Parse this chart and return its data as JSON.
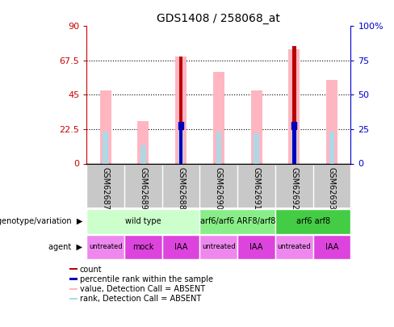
{
  "title": "GDS1408 / 258068_at",
  "samples": [
    "GSM62687",
    "GSM62689",
    "GSM62688",
    "GSM62690",
    "GSM62691",
    "GSM62692",
    "GSM62693"
  ],
  "ylim": [
    0,
    90
  ],
  "y2lim": [
    0,
    100
  ],
  "yticks": [
    0,
    22.5,
    45,
    67.5,
    90
  ],
  "ytick_labels": [
    "0",
    "22.5",
    "45",
    "67.5",
    "90"
  ],
  "y2ticks": [
    0,
    25,
    50,
    75,
    100
  ],
  "y2tick_labels": [
    "0",
    "25",
    "50",
    "75",
    "100%"
  ],
  "gridlines": [
    22.5,
    45,
    67.5
  ],
  "pink_bar_heights": [
    48,
    28,
    70,
    60,
    48,
    75,
    55
  ],
  "light_blue_bar_heights": [
    21,
    12,
    21,
    21,
    20,
    21,
    21
  ],
  "dark_red_bar_heights": [
    0,
    0,
    70,
    0,
    0,
    77,
    0
  ],
  "dark_blue_bar_heights": [
    0,
    0,
    25,
    0,
    0,
    25,
    0
  ],
  "pink_color": "#FFB6C1",
  "light_blue_color": "#ADD8E6",
  "dark_red_color": "#BB0000",
  "dark_blue_color": "#0000BB",
  "left_axis_color": "#CC0000",
  "right_axis_color": "#0000CC",
  "sample_label_bg": "#C8C8C8",
  "genotype_groups": [
    {
      "label": "wild type",
      "start": 0,
      "end": 3,
      "color": "#CCFFCC"
    },
    {
      "label": "arf6/arf6 ARF8/arf8",
      "start": 3,
      "end": 5,
      "color": "#88EE88"
    },
    {
      "label": "arf6 arf8",
      "start": 5,
      "end": 7,
      "color": "#44CC44"
    }
  ],
  "agent_groups": [
    {
      "label": "untreated",
      "start": 0,
      "end": 1,
      "color": "#EE88EE"
    },
    {
      "label": "mock",
      "start": 1,
      "end": 2,
      "color": "#DD44DD"
    },
    {
      "label": "IAA",
      "start": 2,
      "end": 3,
      "color": "#DD44DD"
    },
    {
      "label": "untreated",
      "start": 3,
      "end": 4,
      "color": "#EE88EE"
    },
    {
      "label": "IAA",
      "start": 4,
      "end": 5,
      "color": "#DD44DD"
    },
    {
      "label": "untreated",
      "start": 5,
      "end": 6,
      "color": "#EE88EE"
    },
    {
      "label": "IAA",
      "start": 6,
      "end": 7,
      "color": "#DD44DD"
    }
  ],
  "legend_items": [
    {
      "label": "count",
      "color": "#BB0000"
    },
    {
      "label": "percentile rank within the sample",
      "color": "#0000BB"
    },
    {
      "label": "value, Detection Call = ABSENT",
      "color": "#FFB6C1"
    },
    {
      "label": "rank, Detection Call = ABSENT",
      "color": "#ADD8E6"
    }
  ]
}
